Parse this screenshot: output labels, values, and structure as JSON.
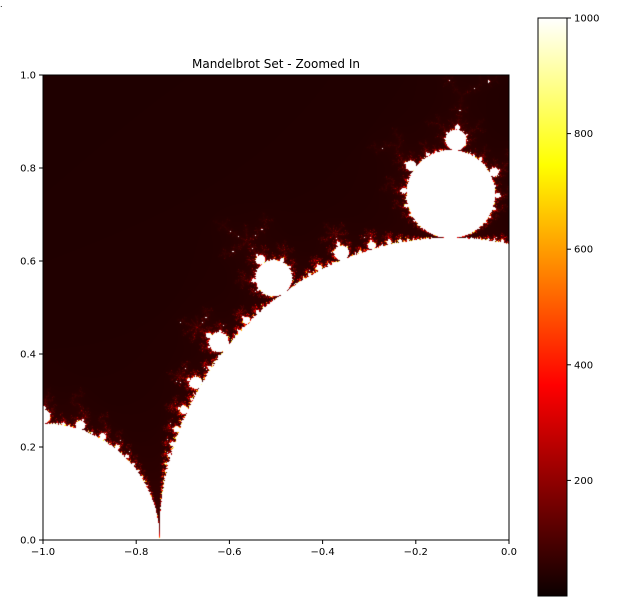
{
  "chart_data": {
    "type": "heatmap",
    "title": "Mandelbrot Set - Zoomed In",
    "xlabel": "",
    "ylabel": "",
    "xlim": [
      -1.0,
      0.0
    ],
    "ylim": [
      0.0,
      1.0
    ],
    "x_ticks": [
      -1.0,
      -0.8,
      -0.6,
      -0.4,
      -0.2,
      0.0
    ],
    "x_tick_labels": [
      "−1.0",
      "−0.8",
      "−0.6",
      "−0.4",
      "−0.2",
      "0.0"
    ],
    "y_ticks": [
      0.0,
      0.2,
      0.4,
      0.6,
      0.8,
      1.0
    ],
    "y_tick_labels": [
      "0.0",
      "0.2",
      "0.4",
      "0.6",
      "0.8",
      "1.0"
    ],
    "colormap": "hot",
    "colorbar": {
      "range": [
        0,
        1000
      ],
      "ticks": [
        200,
        400,
        600,
        800,
        1000
      ],
      "tick_labels": [
        "200",
        "400",
        "600",
        "800",
        "1000"
      ]
    },
    "quantity": "iterations",
    "max_iterations": 1000,
    "grid": false,
    "corner_mark": "."
  }
}
